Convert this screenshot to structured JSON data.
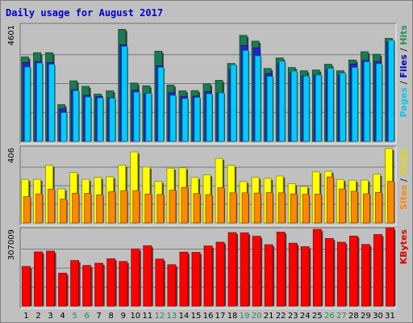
{
  "chart_data": {
    "type": "bar",
    "title": "Daily usage for August 2017",
    "days": [
      "1",
      "2",
      "3",
      "4",
      "5",
      "6",
      "7",
      "8",
      "9",
      "10",
      "11",
      "12",
      "13",
      "14",
      "15",
      "16",
      "17",
      "18",
      "19",
      "20",
      "21",
      "22",
      "23",
      "24",
      "25",
      "26",
      "27",
      "28",
      "29",
      "30",
      "31"
    ],
    "weekend_days": [
      "5",
      "6",
      "12",
      "13",
      "19",
      "20",
      "26",
      "27"
    ],
    "panels": [
      {
        "name": "hits-files-pages",
        "max_label": "4601",
        "ymax": 4601,
        "side_labels": [
          {
            "text": "Pages",
            "color": "#00ccee"
          },
          {
            "text": " / ",
            "color": "#333333"
          },
          {
            "text": "Files",
            "color": "#0000cc"
          },
          {
            "text": " / ",
            "color": "#333333"
          },
          {
            "text": "Hits",
            "color": "#2f8f5f"
          }
        ],
        "series": [
          {
            "name": "Hits",
            "color": "#1a7a50",
            "values": [
              3360,
              3530,
              3530,
              1460,
              2410,
              2190,
              1880,
              2010,
              4460,
              2320,
              2210,
              3590,
              2240,
              2010,
              2020,
              2290,
              2430,
              3100,
              4220,
              3990,
              2900,
              3320,
              2940,
              2810,
              2840,
              3070,
              2810,
              3240,
              3570,
              3470,
              4100
            ]
          },
          {
            "name": "Files",
            "color": "#2222dd",
            "values": [
              3140,
              3180,
              3140,
              1290,
              2060,
              1830,
              1780,
              1730,
              3850,
              2040,
              1890,
              3010,
              1940,
              1780,
              1800,
              1980,
              1920,
              2860,
              3820,
              3720,
              2700,
              3120,
              2740,
              2600,
              2640,
              2860,
              2630,
              3080,
              3220,
              3180,
              3950
            ]
          },
          {
            "name": "Pages",
            "color": "#00ccff",
            "values": [
              2960,
              3120,
              3070,
              1140,
              2020,
              1770,
              1730,
              1720,
              3780,
              1960,
              1910,
              2950,
              1830,
              1700,
              1750,
              1890,
              1930,
              3050,
              3620,
              3400,
              2590,
              3190,
              2800,
              2600,
              2640,
              2910,
              2720,
              2940,
              3170,
              3090,
              4030
            ]
          }
        ]
      },
      {
        "name": "visits-sites",
        "max_label": "406",
        "ymax": 406,
        "side_labels": [
          {
            "text": "Sites",
            "color": "#ff8800"
          },
          {
            "text": " / ",
            "color": "#333333"
          },
          {
            "text": "Visits",
            "color": "#dddd00"
          }
        ],
        "series": [
          {
            "name": "Visits",
            "color": "#ffff00",
            "values": [
              238,
              238,
              315,
              186,
              275,
              238,
              248,
              252,
              316,
              388,
              305,
              227,
              299,
              301,
              248,
              263,
              352,
              314,
              226,
              249,
              243,
              256,
              214,
              199,
              279,
              282,
              237,
              233,
              234,
              266,
              406
            ]
          },
          {
            "name": "Sites",
            "color": "#ff8800",
            "values": [
              143,
              158,
              184,
              130,
              162,
              161,
              153,
              170,
              176,
              176,
              157,
              155,
              178,
              194,
              160,
              154,
              192,
              164,
              164,
              163,
              165,
              164,
              158,
              156,
              157,
              251,
              185,
              173,
              159,
              166,
              227
            ]
          }
        ]
      },
      {
        "name": "kbytes",
        "max_label": "307009",
        "ymax": 307009,
        "side_labels": [
          {
            "text": "KBytes",
            "color": "#dd0000"
          }
        ],
        "series": [
          {
            "name": "KBytes",
            "color": "#ff0000",
            "values": [
              160000,
              219000,
              222000,
              133000,
              184000,
              164000,
              173000,
              191000,
              180000,
              231000,
              244000,
              190000,
              167000,
              218000,
              217000,
              243000,
              258000,
              297000,
              296000,
              282000,
              248000,
              299000,
              254000,
              240000,
              310000,
              273000,
              258000,
              283000,
              249000,
              289000,
              316000
            ]
          }
        ]
      }
    ]
  }
}
